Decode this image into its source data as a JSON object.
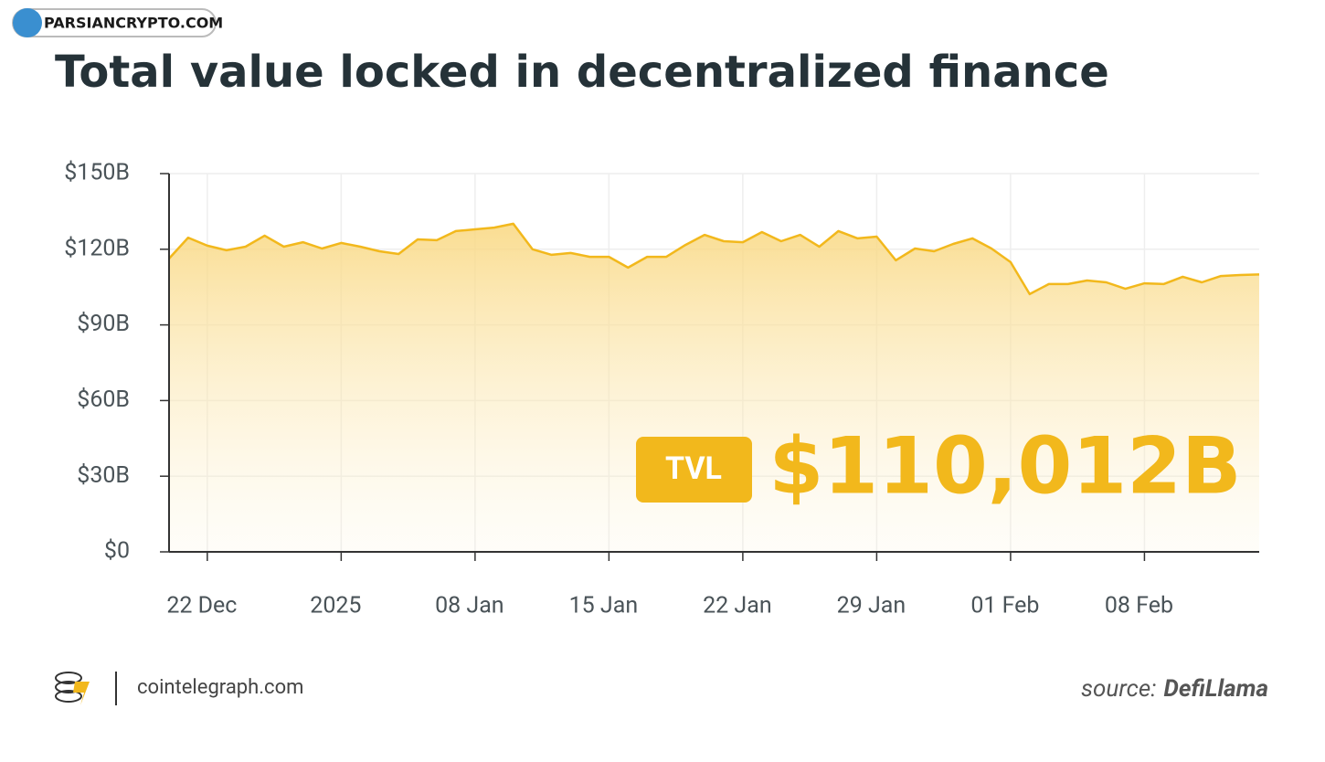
{
  "chart_data": {
    "type": "area",
    "title": "Total value locked in decentralized finance",
    "watermark": "PARSIANCRYPTO.COM",
    "site": "cointelegraph.com",
    "source_label": "source:",
    "source": "DefiLlama",
    "badge": "TVL",
    "headline": "$110,012B",
    "categories": [
      null,
      null,
      "22 Dec",
      null,
      null,
      null,
      null,
      null,
      null,
      "2025",
      null,
      null,
      null,
      null,
      null,
      null,
      "08 Jan",
      null,
      null,
      null,
      null,
      null,
      null,
      "15 Jan",
      null,
      null,
      null,
      null,
      null,
      null,
      "22 Jan",
      null,
      null,
      null,
      null,
      null,
      null,
      "29 Jan",
      null,
      null,
      null,
      null,
      null,
      null,
      "01 Feb",
      null,
      null,
      null,
      null,
      null,
      null,
      "08 Feb",
      null,
      null,
      null,
      null,
      null,
      null
    ],
    "series": [
      {
        "name": "TVL",
        "color": "#f2b81c",
        "values": [
          116.3,
          124.6,
          121.4,
          119.6,
          121,
          125.4,
          121,
          122.8,
          120.3,
          122.5,
          121,
          119.2,
          118.1,
          123.9,
          123.6,
          127.2,
          127.9,
          128.6,
          130.1,
          120,
          117.8,
          118.5,
          117,
          117,
          112.7,
          117,
          117,
          121.7,
          125.7,
          123.2,
          122.8,
          126.8,
          123.2,
          125.7,
          121,
          127.2,
          124.3,
          125,
          115.6,
          120.3,
          119.2,
          122.1,
          124.3,
          120.3,
          114.9,
          102.2,
          106.2,
          106.2,
          107.6,
          106.9,
          104.3,
          106.5,
          106.2,
          109.1,
          106.9,
          109.4,
          109.8,
          110.0
        ]
      }
    ],
    "ylim": [
      0,
      150
    ],
    "yticks": [
      {
        "value": 0,
        "label": "$0"
      },
      {
        "value": 30,
        "label": "$30B"
      },
      {
        "value": 60,
        "label": "$60B"
      },
      {
        "value": 90,
        "label": "$90B"
      },
      {
        "value": 120,
        "label": "$120B"
      },
      {
        "value": 150,
        "label": "$150B"
      }
    ],
    "grid": true
  }
}
